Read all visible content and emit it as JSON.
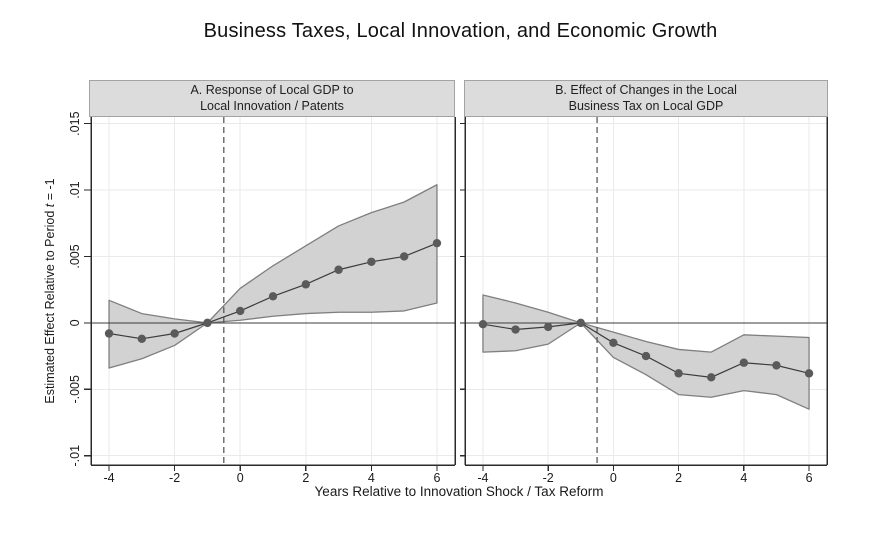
{
  "figure": {
    "title": "Business Taxes, Local Innovation, and Economic Growth",
    "xlabel": "Years Relative to Innovation Shock / Tax Reform",
    "ylabel": {
      "pre": "Estimated Effect Relative to Period ",
      "var": "t",
      "post": " = -1"
    }
  },
  "colors": {
    "band_fill": "#d2d2d2",
    "band_edge": "#7f7f7f",
    "line": "#3c3c3c",
    "marker": "#5a5a5a",
    "grid": "#eaeaea",
    "axis": "#2b2b2b",
    "zero_line": "#3c3c3c",
    "ref_line": "#4d4d4d",
    "header_fill": "#dcdcdc",
    "header_border": "#a3a3a3",
    "tick_text": "#1a1a1a"
  },
  "chart_data": [
    {
      "type": "area",
      "panel": "A",
      "title_lines": [
        "A. Response of Local GDP to",
        "Local Innovation / Patents"
      ],
      "x": [
        -4,
        -3,
        -2,
        -1,
        0,
        1,
        2,
        3,
        4,
        5,
        6
      ],
      "series": [
        {
          "name": "estimate",
          "values": [
            -0.0008,
            -0.0012,
            -0.0008,
            0,
            0.0009,
            0.002,
            0.0029,
            0.004,
            0.0046,
            0.005,
            0.006
          ]
        },
        {
          "name": "ci_upper",
          "values": [
            0.0017,
            0.0007,
            0.0003,
            0,
            0.0026,
            0.0043,
            0.0058,
            0.0073,
            0.0083,
            0.0091,
            0.0104
          ]
        },
        {
          "name": "ci_lower",
          "values": [
            -0.0034,
            -0.0027,
            -0.0017,
            0,
            0.0002,
            0.0005,
            0.0007,
            0.0008,
            0.0008,
            0.0009,
            0.0015
          ]
        }
      ],
      "ref_line_x": -0.5,
      "zero_line_y": 0,
      "xticks": [
        -4,
        -2,
        0,
        2,
        4,
        6
      ],
      "yticks": [
        {
          "v": 0.015,
          "label": ".015"
        },
        {
          "v": 0.01,
          "label": ".01"
        },
        {
          "v": 0.005,
          "label": ".005"
        },
        {
          "v": 0,
          "label": "0"
        },
        {
          "v": -0.005,
          "label": "-.005"
        },
        {
          "v": -0.01,
          "label": "-.01"
        }
      ],
      "show_ytick_labels": true,
      "xlim": [
        -4.55,
        6.55
      ],
      "ylim": [
        -0.0107,
        0.0155
      ],
      "grid": true,
      "legend": "none"
    },
    {
      "type": "area",
      "panel": "B",
      "title_lines": [
        "B. Effect of Changes in the Local",
        "Business Tax on Local GDP"
      ],
      "x": [
        -4,
        -3,
        -2,
        -1,
        0,
        1,
        2,
        3,
        4,
        5,
        6
      ],
      "series": [
        {
          "name": "estimate",
          "values": [
            -0.0001,
            -0.0005,
            -0.0003,
            0,
            -0.0015,
            -0.0025,
            -0.0038,
            -0.0041,
            -0.003,
            -0.0032,
            -0.0038
          ]
        },
        {
          "name": "ci_upper",
          "values": [
            0.0021,
            0.0015,
            0.0008,
            0,
            -0.0007,
            -0.0014,
            -0.002,
            -0.0022,
            -0.0009,
            -0.001,
            -0.0011
          ]
        },
        {
          "name": "ci_lower",
          "values": [
            -0.0022,
            -0.0021,
            -0.0016,
            0,
            -0.0026,
            -0.0039,
            -0.0054,
            -0.0056,
            -0.0051,
            -0.0054,
            -0.0065
          ]
        }
      ],
      "ref_line_x": -0.5,
      "zero_line_y": 0,
      "xticks": [
        -4,
        -2,
        0,
        2,
        4,
        6
      ],
      "yticks": [
        {
          "v": 0.015,
          "label": ".015"
        },
        {
          "v": 0.01,
          "label": ".01"
        },
        {
          "v": 0.005,
          "label": ".005"
        },
        {
          "v": 0,
          "label": "0"
        },
        {
          "v": -0.005,
          "label": "-.005"
        },
        {
          "v": -0.01,
          "label": "-.01"
        }
      ],
      "show_ytick_labels": false,
      "xlim": [
        -4.55,
        6.55
      ],
      "ylim": [
        -0.0107,
        0.0155
      ],
      "grid": true,
      "legend": "none"
    }
  ]
}
